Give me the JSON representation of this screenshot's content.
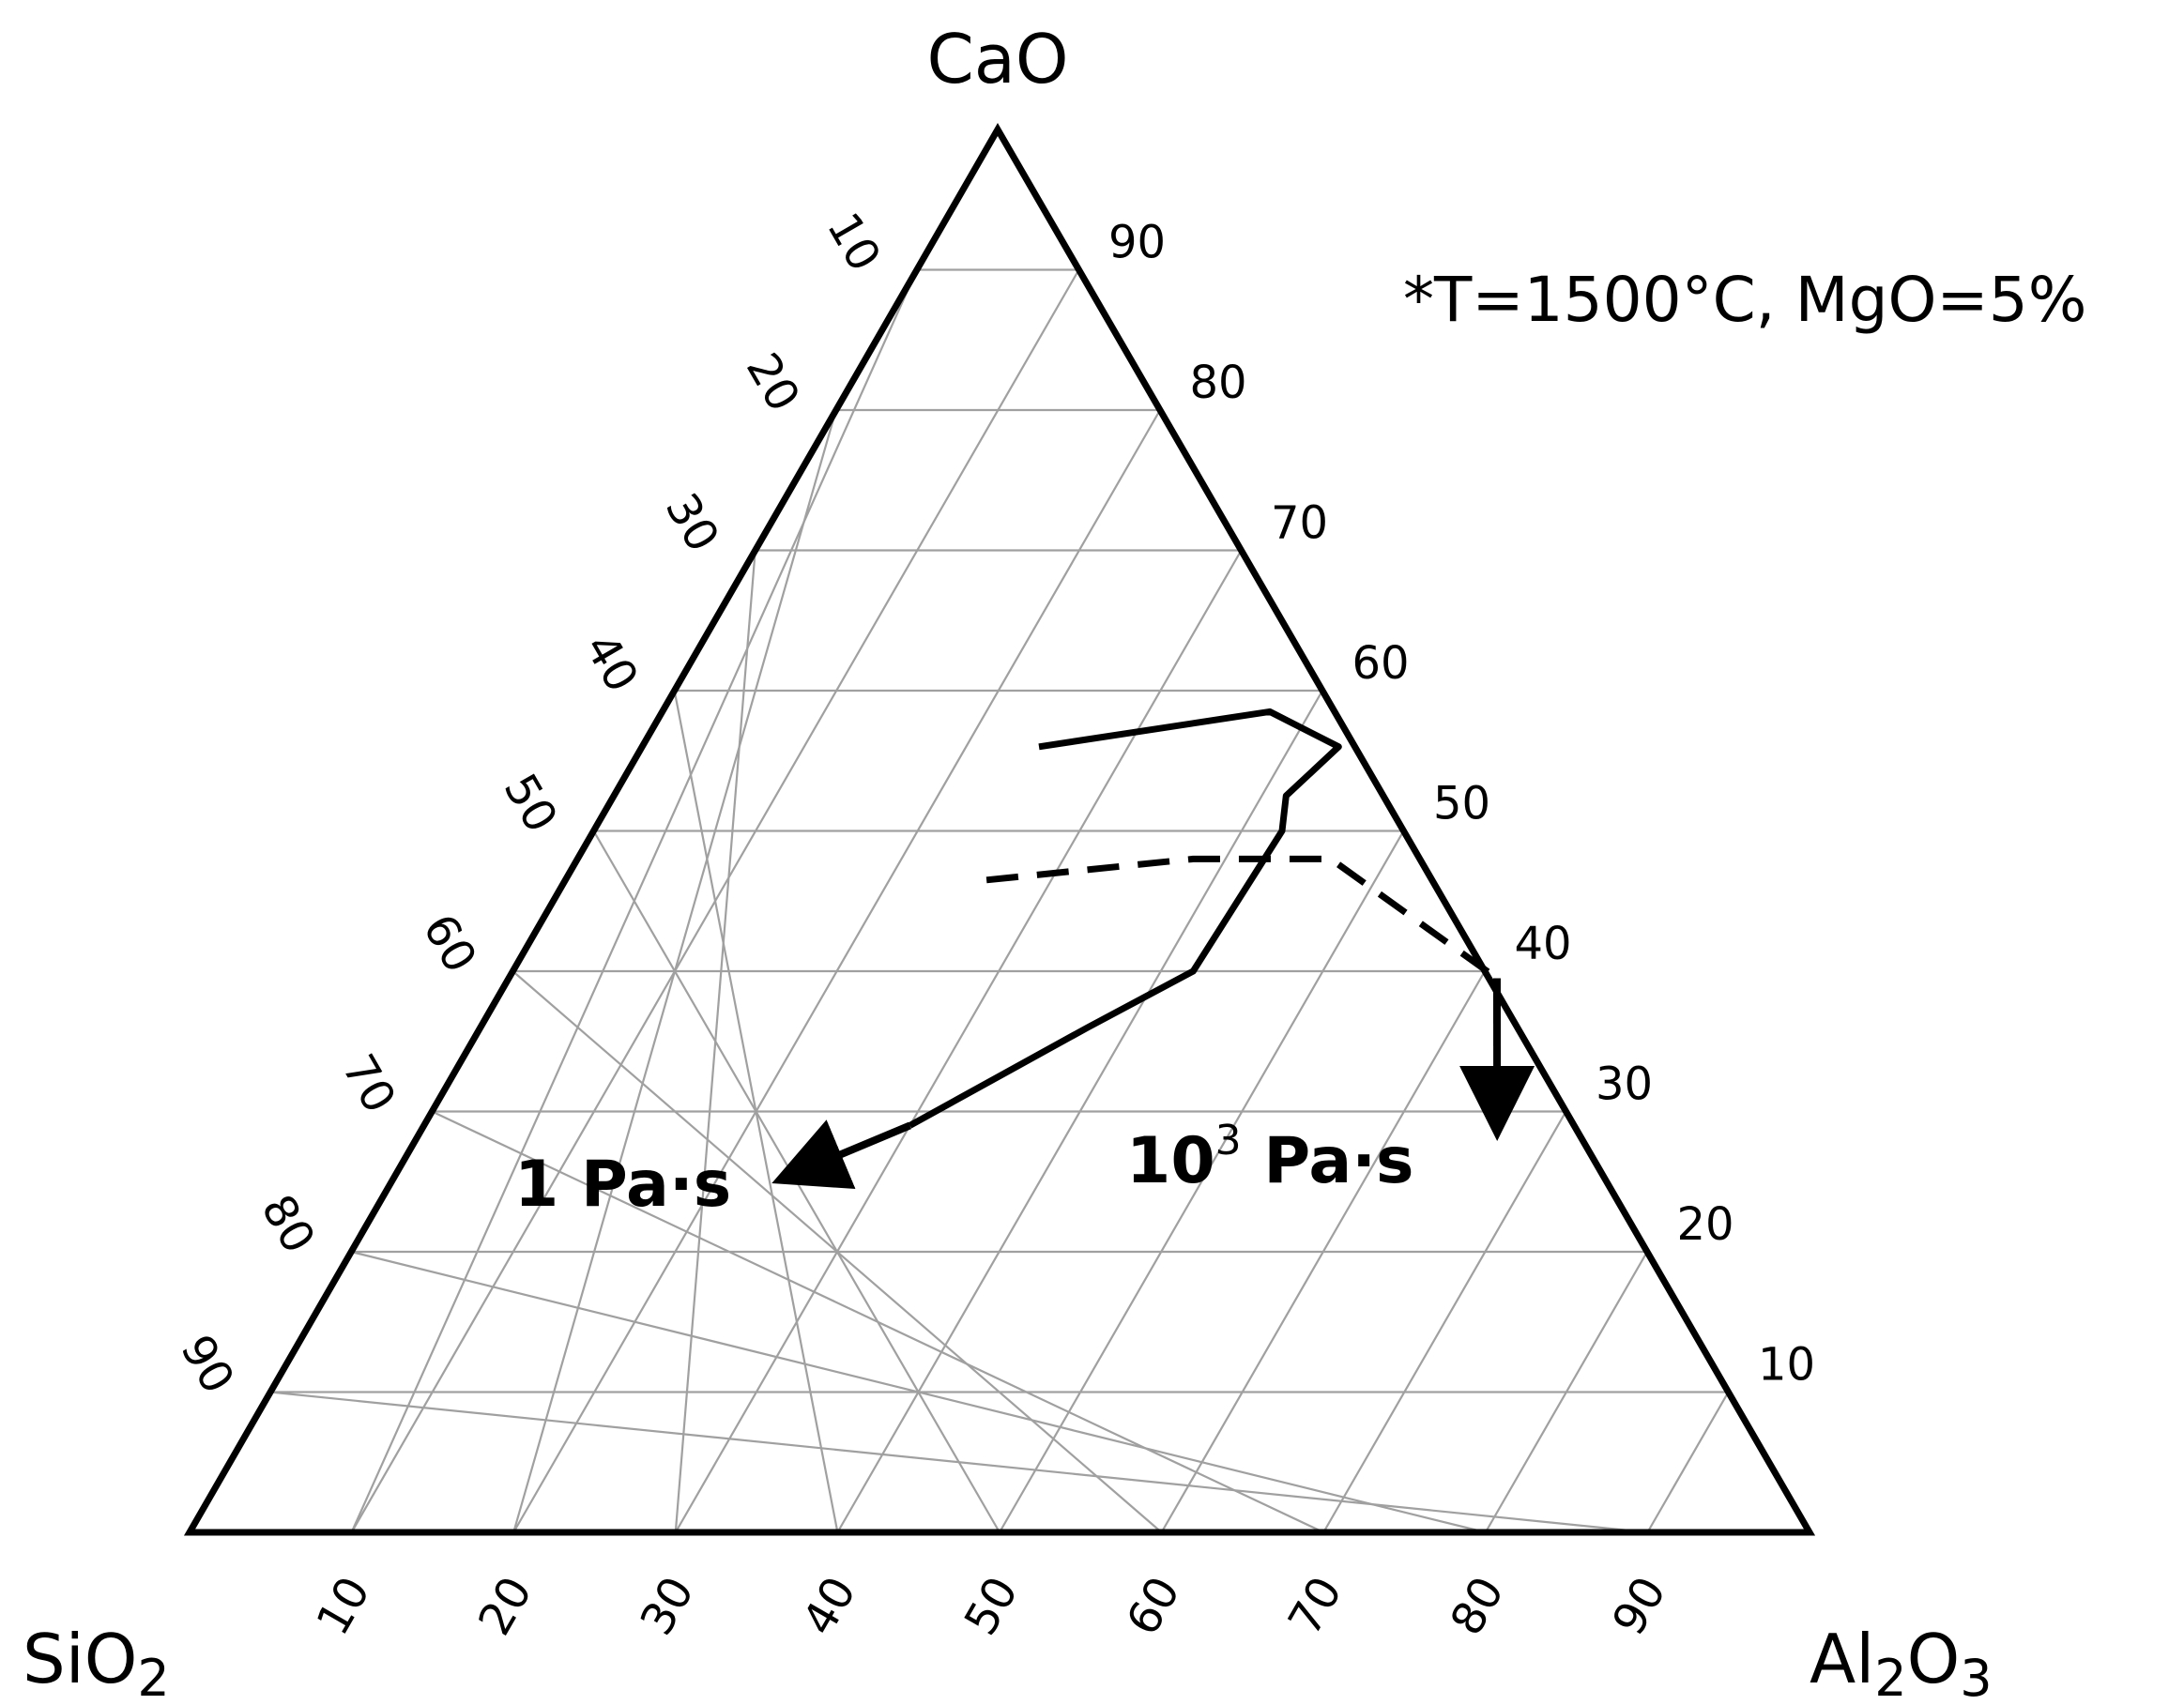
{
  "chart_data": {
    "type": "ternary",
    "vertices": {
      "top": {
        "base": "CaO",
        "sub": ""
      },
      "left": {
        "base": "SiO",
        "sub": "2"
      },
      "right": {
        "base": "Al",
        "sub": "2",
        "base2": "O",
        "sub2": "3"
      }
    },
    "annotation": "*T=1500°C, MgO=5%",
    "ticks": {
      "bottom": [
        "10",
        "20",
        "30",
        "40",
        "50",
        "60",
        "70",
        "80",
        "90"
      ],
      "left": [
        "10",
        "20",
        "30",
        "40",
        "50",
        "60",
        "70",
        "80",
        "90"
      ],
      "right": [
        "90",
        "80",
        "70",
        "60",
        "50",
        "40",
        "30",
        "20",
        "10"
      ]
    },
    "grid": true,
    "series": [
      {
        "name": "1 Pa·s",
        "name_parts": {
          "text": "1 Pa·s"
        },
        "style": "solid",
        "points_cao_al2o3": [
          [
            56,
            24.5
          ],
          [
            58.5,
            37.5
          ],
          [
            56,
            43
          ],
          [
            52.5,
            41.5
          ],
          [
            50,
            42.5
          ],
          [
            40,
            42
          ],
          [
            36,
            37.5
          ],
          [
            29,
            30
          ]
        ],
        "arrow_to_cao_al2o3": [
          25.5,
          24.5
        ]
      },
      {
        "name": "10³ Pa·s",
        "name_parts": {
          "base": "10",
          "sup": "3",
          "rest": " Pa·s"
        },
        "style": "dashed",
        "points_cao_al2o3": [
          [
            46.5,
            26
          ],
          [
            48,
            38
          ],
          [
            48,
            46.5
          ],
          [
            39.5,
            61
          ]
        ],
        "arrow_to_cao_al2o3": [
          29.5,
          66
        ]
      }
    ],
    "colors": {
      "frame": "#000000",
      "grid": "#a0a0a0",
      "curve": "#000000"
    }
  }
}
